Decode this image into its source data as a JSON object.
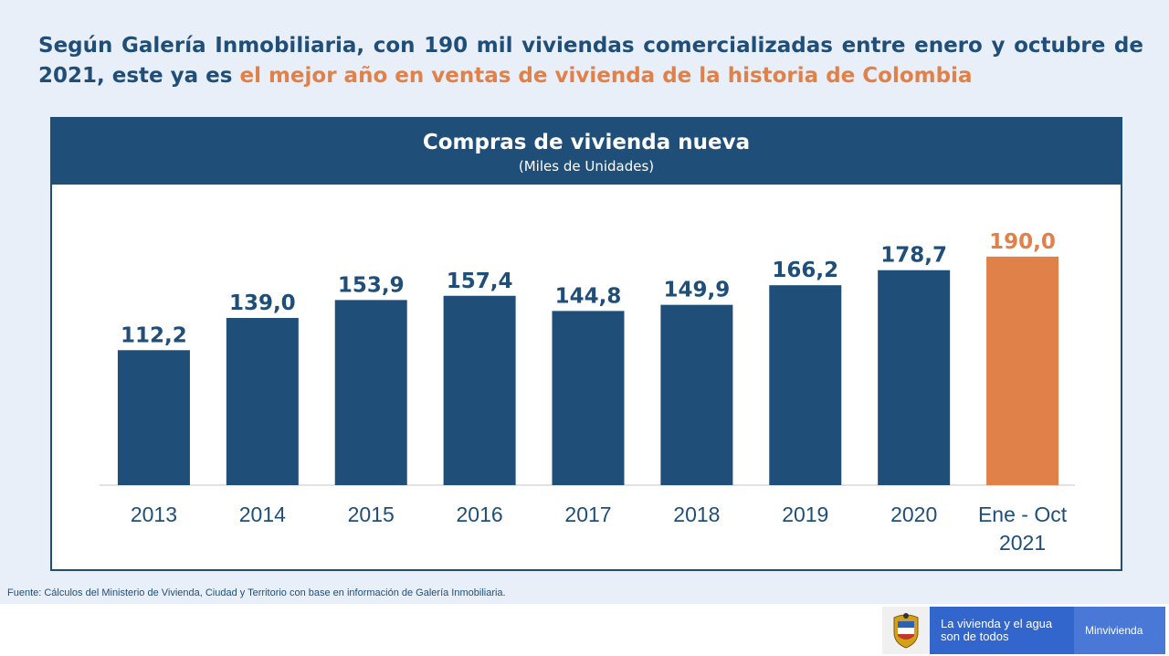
{
  "headline": {
    "part1": "Según Galería Inmobiliaria, con 190 mil viviendas comercializadas entre enero y octubre de 2021, este ya es ",
    "highlight": "el mejor año en ventas de vivienda de la historia de Colombia"
  },
  "colors": {
    "primary": "#1f4e79",
    "accent": "#e0814a",
    "background": "#e9eff9"
  },
  "chart_data": {
    "type": "bar",
    "title": "Compras de vivienda nueva",
    "subtitle": "(Miles de Unidades)",
    "categories": [
      [
        "2013"
      ],
      [
        "2014"
      ],
      [
        "2015"
      ],
      [
        "2016"
      ],
      [
        "2017"
      ],
      [
        "2018"
      ],
      [
        "2019"
      ],
      [
        "2020"
      ],
      [
        "Ene - Oct",
        "2021"
      ]
    ],
    "values": [
      112.2,
      139.0,
      153.9,
      157.4,
      144.8,
      149.9,
      166.2,
      178.7,
      190.0
    ],
    "value_labels": [
      "112,2",
      "139,0",
      "153,9",
      "157,4",
      "144,8",
      "149,9",
      "166,2",
      "178,7",
      "190,0"
    ],
    "highlight_index": 8,
    "ylim": [
      0,
      199
    ],
    "xlabel": "",
    "ylabel": "",
    "grid": false
  },
  "source": "Fuente: Cálculos del Ministerio de Vivienda, Ciudad y Territorio con base en información de Galería Inmobiliaria.",
  "footer": {
    "slogan_line1": "La vivienda y el agua",
    "slogan_line2": "son de todos",
    "ministry": "Minvivienda",
    "shield_icon": "colombia-coat-of-arms-icon"
  }
}
